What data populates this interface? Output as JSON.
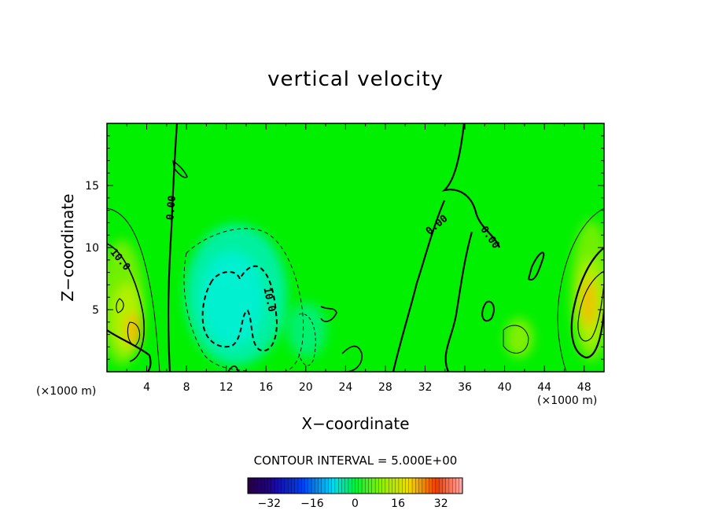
{
  "chart_data": {
    "type": "heatmap",
    "title": "vertical velocity",
    "xlabel": "X−coordinate",
    "ylabel": "Z−coordinate",
    "x_unit_left": "(×1000 m)",
    "x_unit_right": "(×1000 m)",
    "xlim": [
      0,
      50
    ],
    "ylim": [
      0,
      20
    ],
    "x_ticks": [
      4,
      8,
      12,
      16,
      20,
      24,
      28,
      32,
      36,
      40,
      44,
      48
    ],
    "y_ticks": [
      5,
      10,
      15
    ],
    "contour_interval": "CONTOUR INTERVAL = 5.000E+00",
    "contour_labels": [
      {
        "text": "0.00",
        "x": 6.5,
        "y": 13.2,
        "angle": -85
      },
      {
        "text": "0.00",
        "x": 33.2,
        "y": 11.8,
        "angle": -40
      },
      {
        "text": "0.00",
        "x": 38.5,
        "y": 10.8,
        "angle": 55
      },
      {
        "text": "10.0",
        "x": 1.3,
        "y": 9.0,
        "angle": 50
      },
      {
        "text": "10.0",
        "x": 16.3,
        "y": 5.8,
        "angle": 78
      }
    ],
    "colorbar": {
      "range": [
        -40,
        40
      ],
      "tick_values": [
        -32,
        -16,
        0,
        16,
        32
      ],
      "tick_labels": [
        "−32",
        "−16",
        "0",
        "16",
        "32"
      ]
    },
    "features": [
      {
        "name": "updraft",
        "x": 2.7,
        "z": 3.8,
        "peak": 18
      },
      {
        "name": "updraft",
        "x": 48.5,
        "z": 6.0,
        "peak": 20
      },
      {
        "name": "downdraft",
        "x": 12.5,
        "z": 6.0,
        "peak": -11
      }
    ],
    "colors": {
      "background_field": "#00f000",
      "frame": "#000000"
    }
  }
}
